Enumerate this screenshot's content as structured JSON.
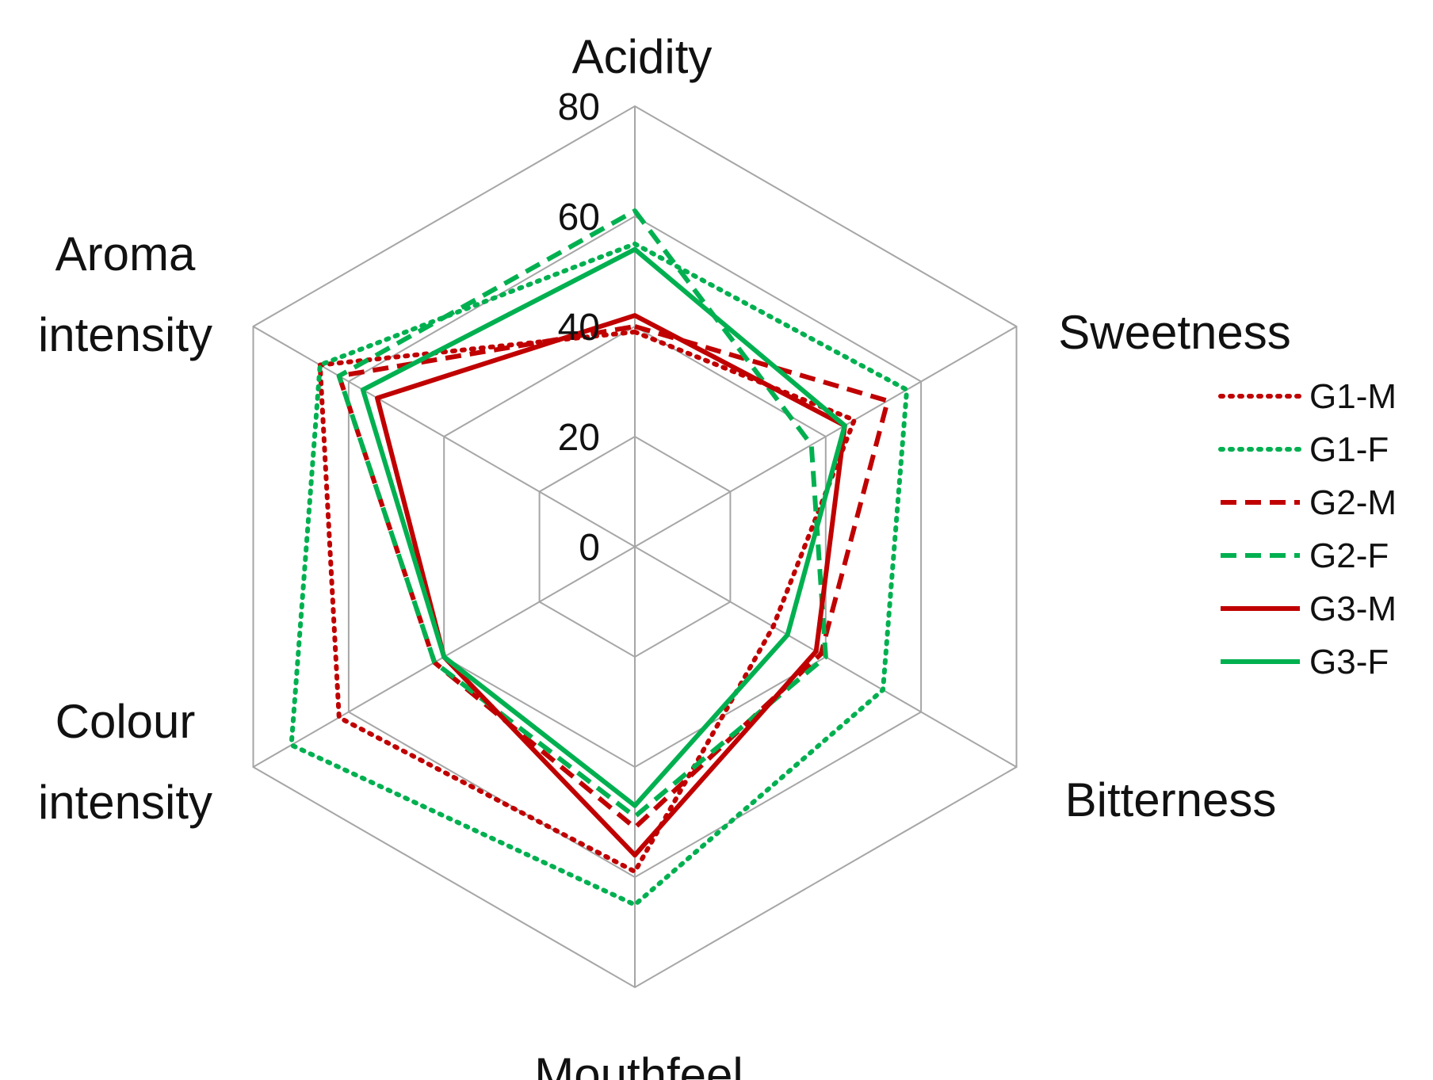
{
  "chart_data": {
    "type": "radar",
    "title": "",
    "axes": [
      "Acidity",
      "Sweetness",
      "Bitterness",
      "Mouthfeel",
      "Colour intensity",
      "Aroma intensity"
    ],
    "axis_label_lines": [
      [
        "Acidity"
      ],
      [
        "Sweetness"
      ],
      [
        "Bitterness"
      ],
      [
        "Mouthfeel"
      ],
      [
        "Colour",
        "intensity"
      ],
      [
        "Aroma",
        "intensity"
      ]
    ],
    "rlim": [
      0,
      80
    ],
    "ticks": [
      0,
      20,
      40,
      60,
      80
    ],
    "tick_labels": [
      "0",
      "20",
      "40",
      "60",
      "80"
    ],
    "grid": true,
    "legend_position": "right",
    "series": [
      {
        "name": "G1-M",
        "color": "#C00000",
        "style": "dotted",
        "values": [
          39,
          46,
          29,
          59,
          62,
          66
        ]
      },
      {
        "name": "G1-F",
        "color": "#00B050",
        "style": "dotted",
        "values": [
          55,
          57,
          52,
          65,
          72,
          66
        ]
      },
      {
        "name": "G2-M",
        "color": "#C00000",
        "style": "dashed",
        "values": [
          40,
          53,
          39,
          51,
          42,
          62
        ]
      },
      {
        "name": "G2-F",
        "color": "#00B050",
        "style": "dashed",
        "values": [
          61,
          37,
          40,
          49,
          42,
          62
        ]
      },
      {
        "name": "G3-M",
        "color": "#C00000",
        "style": "solid",
        "values": [
          42,
          44,
          38,
          56,
          40,
          54
        ]
      },
      {
        "name": "G3-F",
        "color": "#00B050",
        "style": "solid",
        "values": [
          54,
          44,
          32,
          47,
          40,
          57
        ]
      }
    ]
  }
}
